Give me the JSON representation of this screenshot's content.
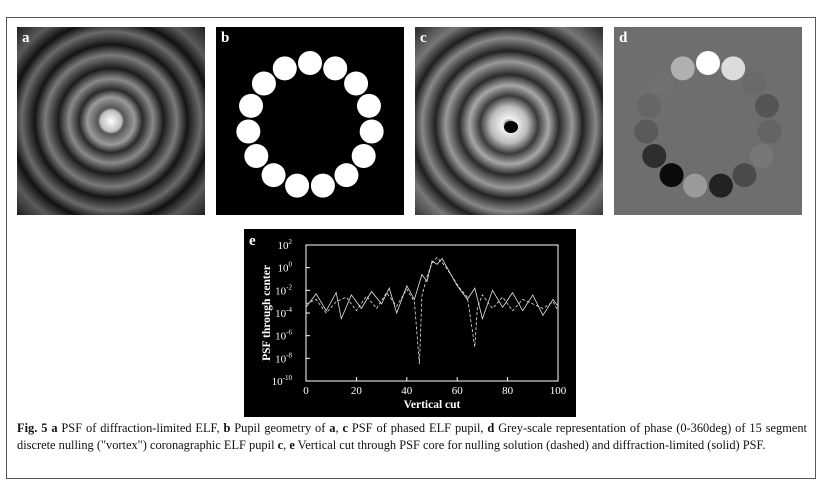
{
  "panels": {
    "a": {
      "label": "a"
    },
    "b": {
      "label": "b"
    },
    "c": {
      "label": "c"
    },
    "d": {
      "label": "d"
    },
    "e": {
      "label": "e"
    }
  },
  "chart_data": {
    "type": "line",
    "xlabel": "Vertical cut",
    "ylabel": "PSF through center",
    "xlim": [
      0,
      100
    ],
    "ylim_log10": [
      -10,
      2
    ],
    "x_ticks": [
      "0",
      "20",
      "40",
      "60",
      "80",
      "100"
    ],
    "y_ticks": [
      "10^2",
      "10^0",
      "10^-2",
      "10^-4",
      "10^-6",
      "10^-8",
      "10^-10"
    ],
    "y_scale": "log",
    "series": [
      {
        "style": "solid",
        "x": [
          0,
          4,
          8,
          12,
          14,
          18,
          22,
          26,
          30,
          33,
          36,
          40,
          43,
          46,
          48,
          50,
          52,
          54,
          57,
          60,
          64,
          67,
          70,
          74,
          78,
          82,
          86,
          90,
          94,
          98,
          100
        ],
        "log10_y": [
          -3.5,
          -2.3,
          -3.8,
          -2.2,
          -4.5,
          -2.4,
          -3.6,
          -2.1,
          -3.2,
          -1.8,
          -4.0,
          -1.6,
          -2.8,
          -0.6,
          -1.2,
          0.6,
          0.3,
          0.8,
          -0.4,
          -1.6,
          -2.8,
          -1.8,
          -4.5,
          -2.0,
          -3.5,
          -2.2,
          -3.8,
          -2.4,
          -4.2,
          -2.8,
          -3.4
        ]
      },
      {
        "style": "dashed",
        "x": [
          0,
          4,
          8,
          12,
          16,
          20,
          24,
          28,
          32,
          36,
          40,
          43,
          45,
          46,
          48,
          50,
          52,
          55,
          58,
          61,
          64,
          67,
          68,
          70,
          74,
          78,
          82,
          86,
          90,
          94,
          98,
          100
        ],
        "log10_y": [
          -3.2,
          -2.8,
          -4.0,
          -3.0,
          -2.6,
          -3.8,
          -2.5,
          -3.6,
          -2.2,
          -3.4,
          -1.9,
          -3.0,
          -8.5,
          -2.5,
          -0.8,
          0.4,
          0.9,
          0.2,
          -0.8,
          -1.8,
          -2.6,
          -7.0,
          -3.5,
          -2.4,
          -3.6,
          -2.6,
          -3.8,
          -2.8,
          -3.2,
          -3.6,
          -3.0,
          -3.8
        ]
      }
    ]
  },
  "caption": {
    "fig": "Fig. 5",
    "p1": " ",
    "a": "a",
    "t1": " PSF of diffraction-limited ELF, ",
    "b": "b",
    "t2": " Pupil geometry of ",
    "a2": "a",
    "t3": ", ",
    "c": "c",
    "t4": " PSF of phased ELF pupil, ",
    "d": "d",
    "t5": " Grey-scale representation of phase (0-360deg) of 15 segment discrete nulling (\"vortex\") coronagraphic ELF pupil ",
    "c2": "c",
    "t6": ", ",
    "e": "e",
    "t7": " Vertical cut through PSF core for nulling solution (dashed) and diffraction-limited (solid) PSF."
  },
  "colors": {
    "panel_bg": "#000000",
    "phase_bg": "#6e6e6e",
    "ring": "#ffffff"
  }
}
